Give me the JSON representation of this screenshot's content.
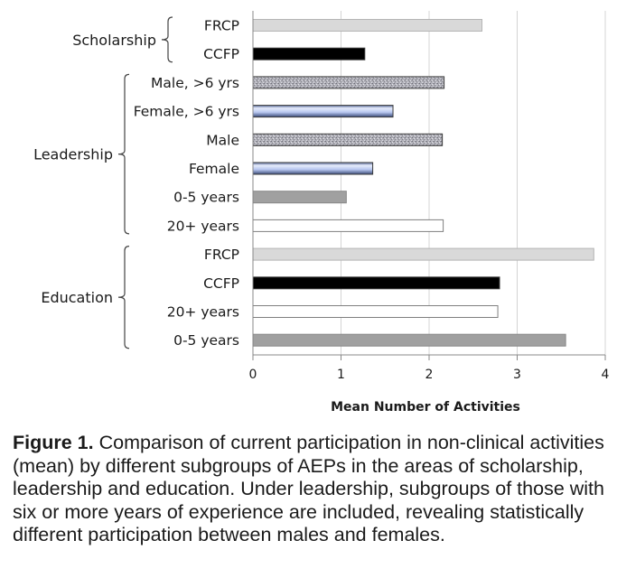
{
  "chart_data": {
    "type": "bar",
    "orientation": "horizontal",
    "xlabel": "Mean Number of Activities",
    "xlim": [
      0,
      4
    ],
    "xticks": [
      "0",
      "1",
      "2",
      "3",
      "4"
    ],
    "grid": true,
    "groups": [
      {
        "name": "Scholarship",
        "bars": [
          {
            "label": "FRCP",
            "value": 2.6,
            "color": "#d9d9d9"
          },
          {
            "label": "CCFP",
            "value": 1.27,
            "color": "#000000"
          }
        ]
      },
      {
        "name": "Leadership",
        "bars": [
          {
            "label": "Male, >6 yrs",
            "value": 2.17,
            "color": "#a6a6b0"
          },
          {
            "label": "Female, >6 yrs",
            "value": 1.59,
            "color": "#b9c6ea"
          },
          {
            "label": "Male",
            "value": 2.15,
            "color": "#a6a6b0"
          },
          {
            "label": "Female",
            "value": 1.36,
            "color": "#b9c6ea"
          },
          {
            "label": "0-5 years",
            "value": 1.06,
            "color": "#a0a0a0"
          },
          {
            "label": "20+ years",
            "value": 2.16,
            "color": "#ffffff"
          }
        ]
      },
      {
        "name": "Education",
        "bars": [
          {
            "label": "FRCP",
            "value": 3.87,
            "color": "#d9d9d9"
          },
          {
            "label": "CCFP",
            "value": 2.8,
            "color": "#000000"
          },
          {
            "label": "20+ years",
            "value": 2.78,
            "color": "#ffffff"
          },
          {
            "label": "0-5 years",
            "value": 3.55,
            "color": "#a0a0a0"
          }
        ]
      }
    ]
  },
  "caption": {
    "label": "Figure 1.",
    "text": "Comparison of current participation in non-clinical activities (mean) by different subgroups of AEPs in the areas of scholarship, leadership and education. Under leadership, subgroups of those with six or more years of experience are included, revealing statistically different participation between males and females."
  }
}
